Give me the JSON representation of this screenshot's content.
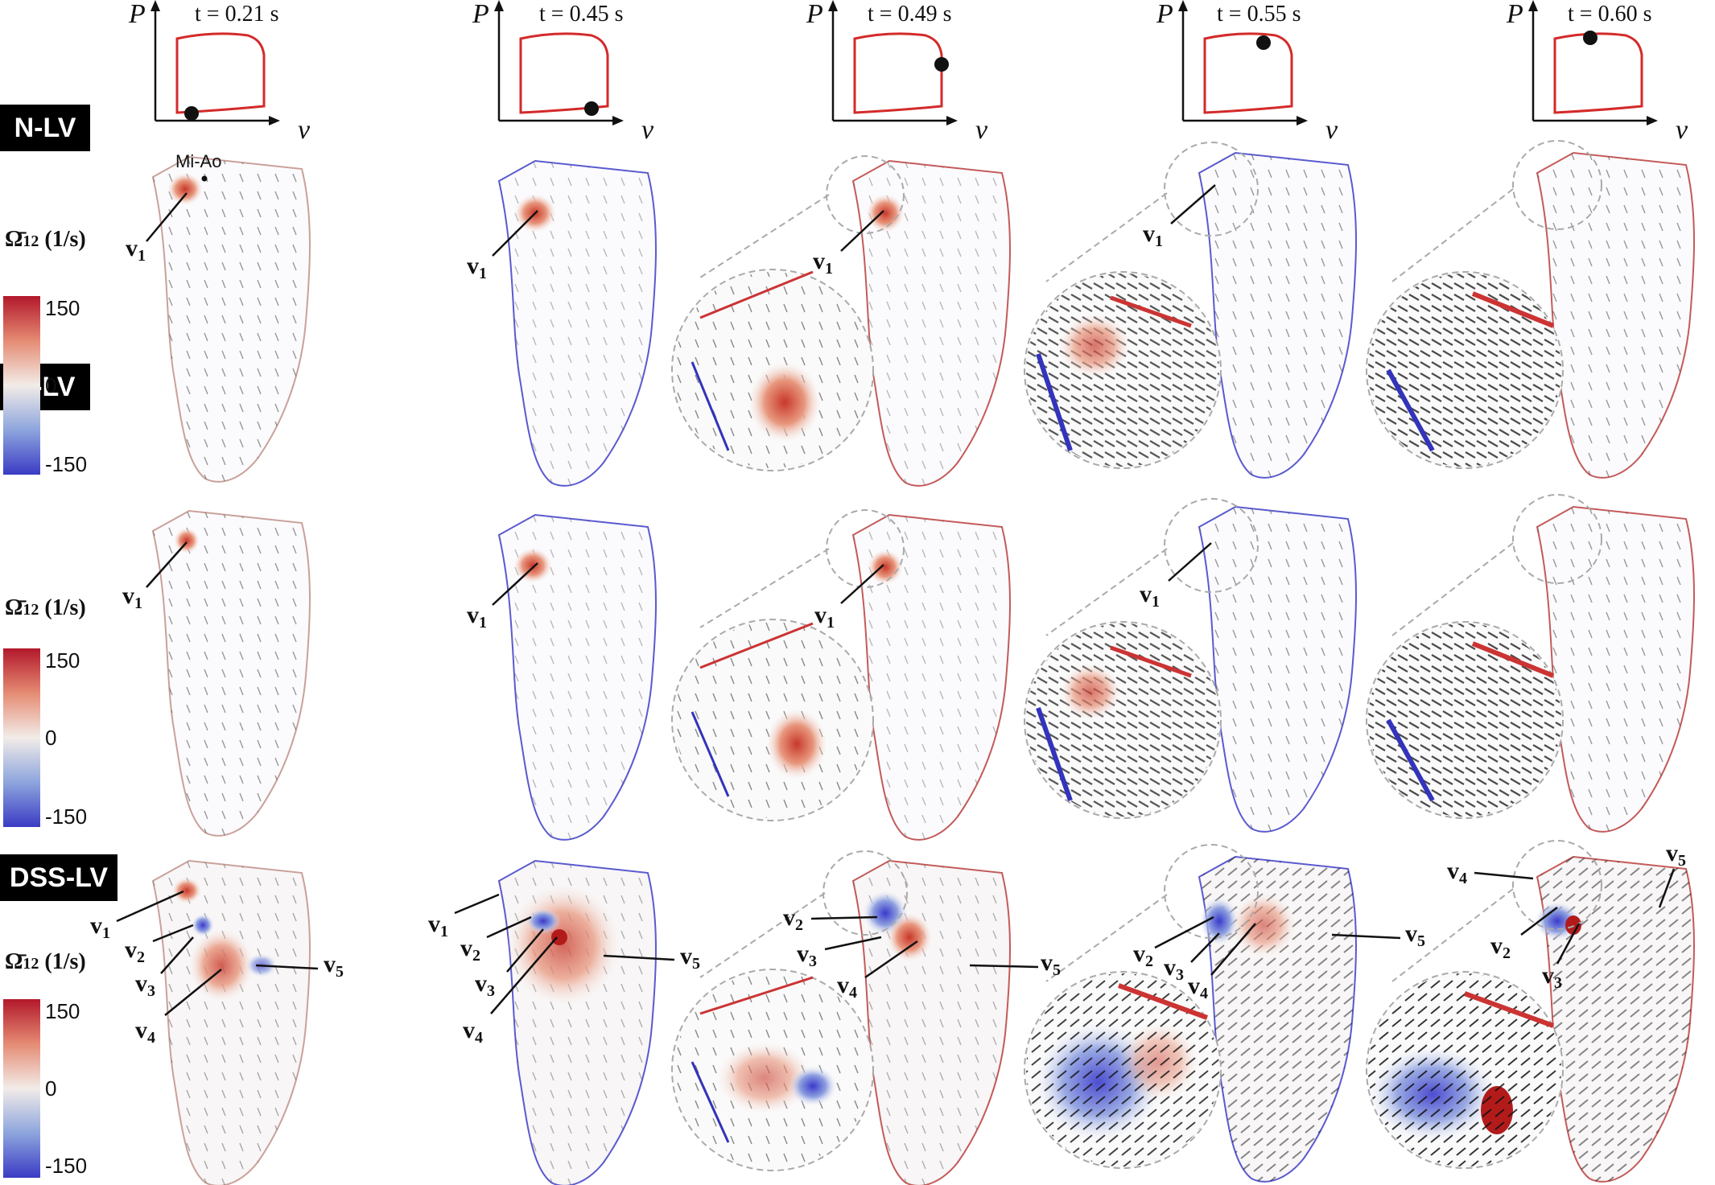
{
  "figure": {
    "time_titles": [
      "t = 0.21 s",
      "t = 0.45 s",
      "t = 0.49 s",
      "t = 0.55 s",
      "t = 0.60 s"
    ],
    "pv_axis_y": "P",
    "pv_axis_x": "v",
    "rows": [
      {
        "label": "N-LV"
      },
      {
        "label": "S-LV"
      },
      {
        "label": "DSS-LV"
      }
    ],
    "colorbar": {
      "title_main": "Ω̄",
      "title_sub": "12",
      "title_unit": "(1/s)",
      "max": "150",
      "mid": "0",
      "min": "-150",
      "colors": {
        "high": "#b2182b",
        "mid": "#f2ece8",
        "low": "#3b3bc4"
      }
    },
    "annotation_mi_ao": "Mi-Ao",
    "vortex_prefix": "v",
    "vortex_ids": [
      "1",
      "2",
      "3",
      "4",
      "5"
    ]
  }
}
